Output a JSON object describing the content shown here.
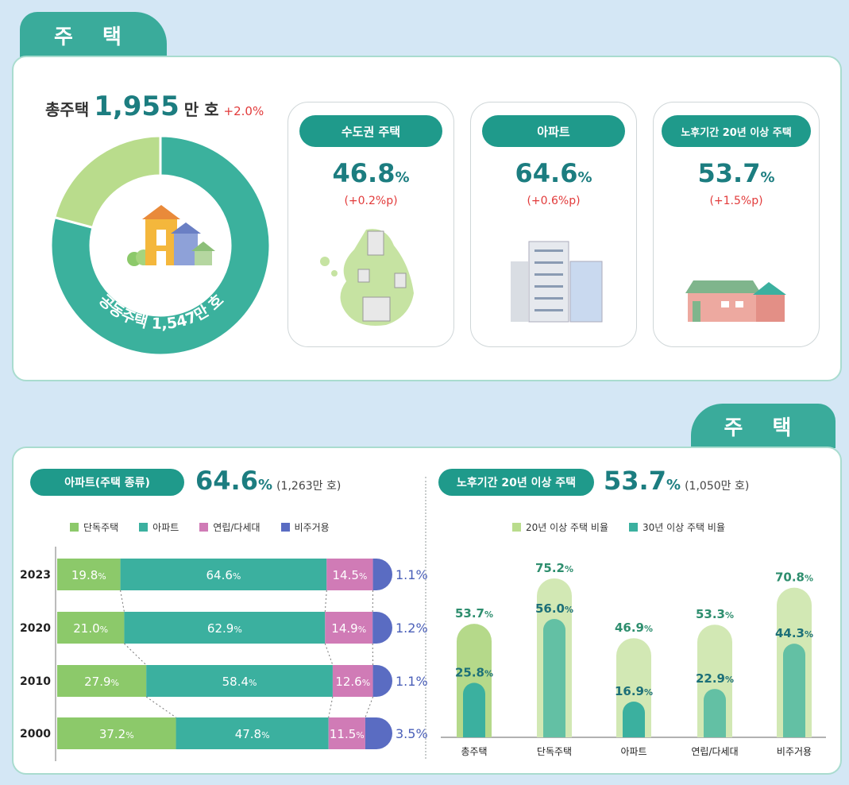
{
  "top": {
    "tab_title": "주 택",
    "total_label": "총주택",
    "total_value": "1,955",
    "total_unit": "만 호",
    "total_change": "+2.0%",
    "donut": {
      "label": "공동주택 1,547만 호",
      "shares": [
        {
          "name": "공동주택",
          "value": 1547,
          "color": "#3bb19d"
        },
        {
          "name": "기타",
          "value": 408,
          "color": "#b9dc8c"
        }
      ]
    },
    "cards": [
      {
        "title": "수도권 주택",
        "value": "46.8",
        "unit": "%",
        "change": "(+0.2%p)",
        "icon": "korea-map-icon"
      },
      {
        "title": "아파트",
        "value": "64.6",
        "unit": "%",
        "change": "(+0.6%p)",
        "icon": "apartment-buildings-icon"
      },
      {
        "title": "노후기간 20년 이상 주택",
        "value": "53.7",
        "unit": "%",
        "change": "(+1.5%p)",
        "icon": "old-house-icon"
      }
    ]
  },
  "bottom": {
    "tab_title": "주 택",
    "left": {
      "pill": "아파트(주택 종류)",
      "value": "64.6",
      "unit": "%",
      "sub": "(1,263만 호)"
    },
    "right": {
      "pill": "노후기간 20년 이상 주택",
      "value": "53.7",
      "unit": "%",
      "sub": "(1,050만 호)"
    }
  },
  "chart_data": [
    {
      "type": "bar",
      "orientation": "horizontal-stacked",
      "categories": [
        "2023",
        "2020",
        "2010",
        "2000"
      ],
      "series": [
        {
          "name": "단독주택",
          "color": "#8cc96a",
          "values": [
            19.8,
            21.0,
            27.9,
            37.2
          ],
          "labels": [
            "19.8",
            "21.0",
            "27.9",
            "37.2"
          ]
        },
        {
          "name": "아파트",
          "color": "#3bb09f",
          "values": [
            64.6,
            62.9,
            58.4,
            47.8
          ],
          "labels": [
            "64.6",
            "62.9",
            "58.4",
            "47.8"
          ]
        },
        {
          "name": "연립/다세대",
          "color": "#d07bb6",
          "values": [
            14.5,
            14.9,
            12.6,
            11.5
          ],
          "labels": [
            "14.5",
            "14.9",
            "12.6",
            "11.5"
          ]
        },
        {
          "name": "비주거용",
          "color": "#5a6cc2",
          "values": [
            1.1,
            1.2,
            1.1,
            3.5
          ],
          "labels": [
            "1.1%",
            "1.2%",
            "1.1%",
            "3.5%"
          ]
        }
      ],
      "unit": "%",
      "xlim": [
        0,
        100
      ]
    },
    {
      "type": "bar",
      "orientation": "vertical-overlapped",
      "categories": [
        "총주택",
        "단독주택",
        "아파트",
        "연립/다세대",
        "비주거용"
      ],
      "series": [
        {
          "name": "20년 이상 주택 비율",
          "color": "#c6e3a2",
          "values": [
            53.7,
            75.2,
            46.9,
            53.3,
            70.8
          ],
          "labels": [
            "53.7",
            "75.2",
            "46.9",
            "53.3",
            "70.8"
          ]
        },
        {
          "name": "30년 이상 주택 비율",
          "color": "#3bb09f",
          "values": [
            25.8,
            56.0,
            16.9,
            22.9,
            44.3
          ],
          "labels": [
            "25.8",
            "56.0",
            "16.9",
            "22.9",
            "44.3"
          ]
        }
      ],
      "unit": "%",
      "ylim": [
        0,
        80
      ]
    }
  ]
}
